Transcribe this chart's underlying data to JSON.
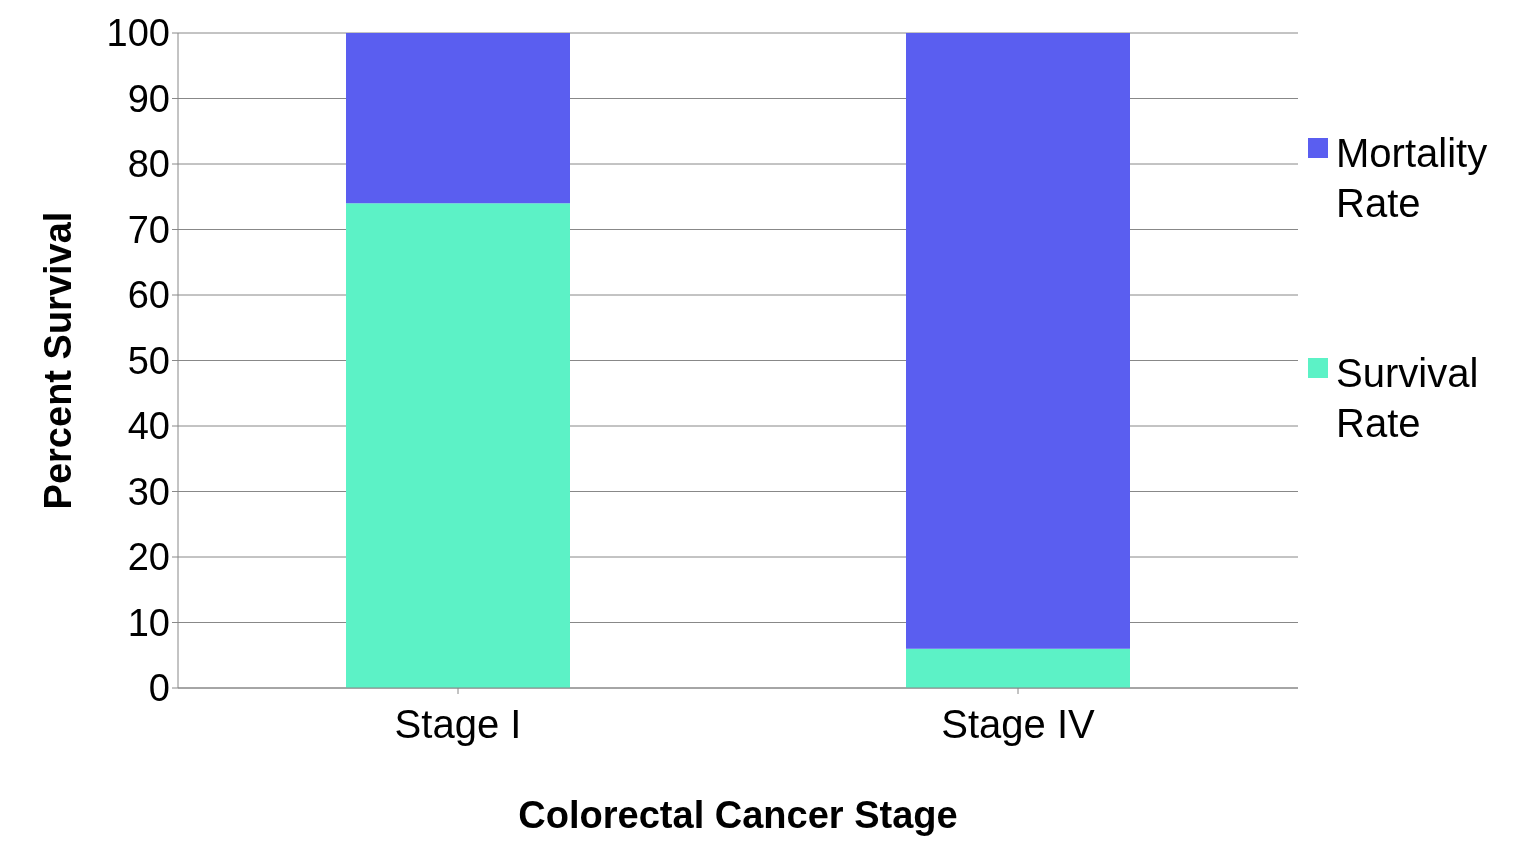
{
  "chart_data": {
    "type": "bar",
    "stacked": true,
    "xlabel": "Colorectal Cancer Stage",
    "ylabel": "Percent Survival",
    "categories": [
      "Stage I",
      "Stage IV"
    ],
    "series": [
      {
        "name": "Survival Rate",
        "color": "#5cf2c6",
        "values": [
          74,
          6
        ]
      },
      {
        "name": "Mortality Rate",
        "color": "#5a5ef0",
        "values": [
          26,
          94
        ]
      }
    ],
    "ylim": [
      0,
      100
    ],
    "yticks": [
      0,
      10,
      20,
      30,
      40,
      50,
      60,
      70,
      80,
      90,
      100
    ],
    "grid": "y",
    "legend": "right"
  }
}
